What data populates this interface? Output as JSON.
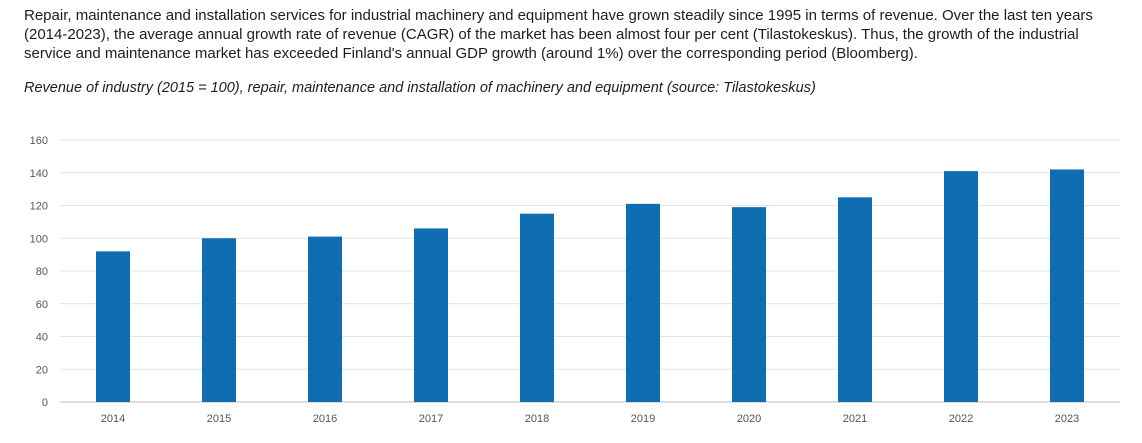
{
  "intro_text": "Repair, maintenance and installation services for industrial machinery and equipment have grown steadily since 1995 in terms of revenue. Over the last ten years (2014-2023), the average annual growth rate of revenue (CAGR) of the market has been almost four per cent (Tilastokeskus). Thus, the growth of the industrial service and maintenance market has exceeded Finland's annual GDP growth (around 1%) over the corresponding period (Bloomberg).",
  "caption": "Revenue of industry (2015 = 100), repair, maintenance and installation of machinery and equipment (source: Tilastokeskus)",
  "colors": {
    "bar": "#0f6eb2"
  },
  "chart_data": {
    "type": "bar",
    "title": "Revenue of industry (2015 = 100), repair, maintenance and installation of machinery and equipment (source: Tilastokeskus)",
    "xlabel": "",
    "ylabel": "",
    "categories": [
      "2014",
      "2015",
      "2016",
      "2017",
      "2018",
      "2019",
      "2020",
      "2021",
      "2022",
      "2023"
    ],
    "values": [
      92,
      100,
      101,
      106,
      115,
      121,
      119,
      125,
      141,
      142
    ],
    "ylim": [
      0,
      160
    ],
    "yticks": [
      0,
      20,
      40,
      60,
      80,
      100,
      120,
      140,
      160
    ],
    "grid": true,
    "legend": "none"
  }
}
